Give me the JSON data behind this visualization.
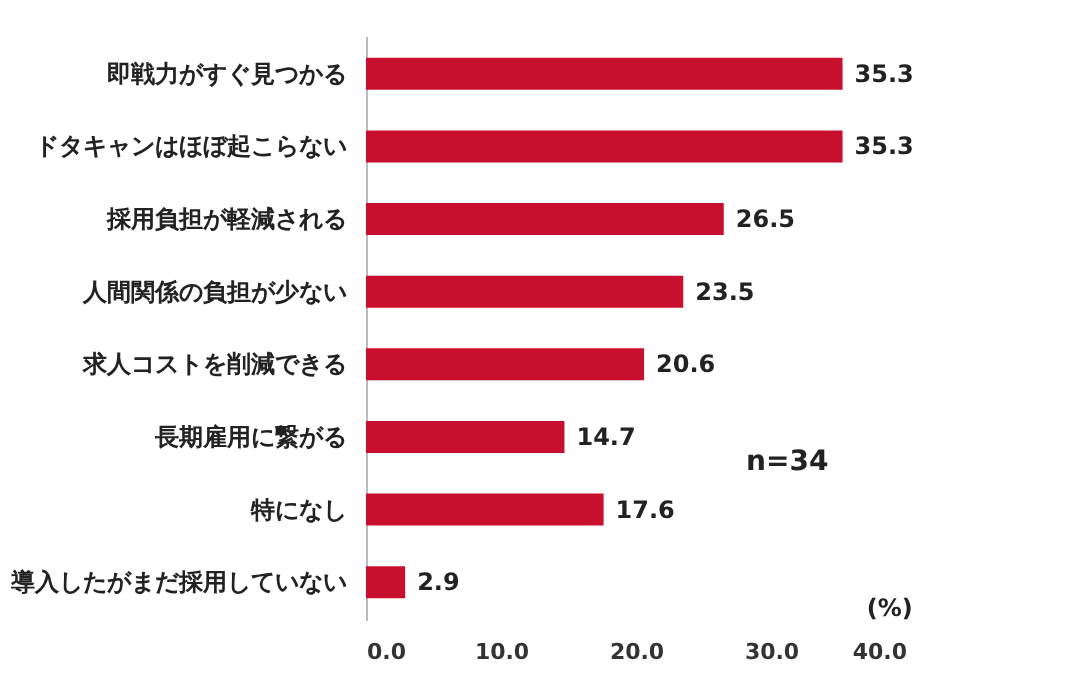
{
  "chart_data": {
    "type": "bar",
    "orientation": "horizontal",
    "categories": [
      "即戦力がすぐ見つかる",
      "ドタキャンはほぼ起こらない",
      "採用負担が軽減される",
      "人間関係の負担が少ない",
      "求人コストを削減できる",
      "長期雇用に繋がる",
      "特になし",
      "導入したがまだ採用していない"
    ],
    "values": [
      35.3,
      35.3,
      26.5,
      23.5,
      20.6,
      14.7,
      17.6,
      2.9
    ],
    "color": "#c8102e",
    "xlim": [
      0,
      40
    ],
    "xticks": [
      {
        "value": 0,
        "label": "0.0"
      },
      {
        "value": 10,
        "label": "10.0"
      },
      {
        "value": 20,
        "label": "20.0"
      },
      {
        "value": 30,
        "label": "30.0"
      },
      {
        "value": 40,
        "label": "40.0"
      }
    ],
    "data_labels": true,
    "annotations": [
      "n=34",
      "(%)"
    ]
  }
}
